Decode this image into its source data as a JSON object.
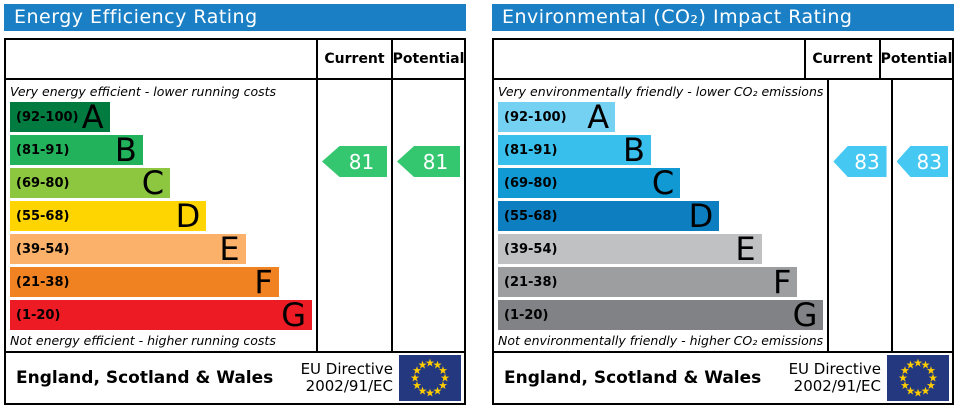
{
  "flag": {
    "blue": "#24387f",
    "star": "#ffcc00"
  },
  "chart_data": [
    {
      "type": "bar",
      "title": "Energy Efficiency Rating",
      "categories": [
        "A (92-100)",
        "B (81-91)",
        "C (69-80)",
        "D (55-68)",
        "E (39-54)",
        "F (21-38)",
        "G (1-20)"
      ],
      "series": [
        {
          "name": "Current",
          "values": [
            81
          ],
          "band": "B"
        },
        {
          "name": "Potential",
          "values": [
            81
          ],
          "band": "B"
        }
      ],
      "xlim": [
        1,
        100
      ],
      "legend_position": "none",
      "notes": "EPC band scale; bar lengths grow from A to G; arrows mark ratings"
    },
    {
      "type": "bar",
      "title": "Environmental (CO₂) Impact Rating",
      "categories": [
        "A (92-100)",
        "B (81-91)",
        "C (69-80)",
        "D (55-68)",
        "E (39-54)",
        "F (21-38)",
        "G (1-20)"
      ],
      "series": [
        {
          "name": "Current",
          "values": [
            83
          ],
          "band": "B"
        },
        {
          "name": "Potential",
          "values": [
            83
          ],
          "band": "B"
        }
      ],
      "xlim": [
        1,
        100
      ],
      "legend_position": "none",
      "notes": "CO2 band scale; bar lengths grow from A to G; arrows mark ratings"
    }
  ],
  "panels": [
    {
      "title": "Energy Efficiency Rating",
      "header_color": "#1a7fc5",
      "col_current": "Current",
      "col_potential": "Potential",
      "top_caption": "Very energy efficient - lower running costs",
      "bottom_caption": "Not energy efficient - higher running costs",
      "bands": [
        {
          "range": "(92-100)",
          "letter": "A",
          "color": "#027b41",
          "width_pct": 33
        },
        {
          "range": "(81-91)",
          "letter": "B",
          "color": "#21b25b",
          "width_pct": 44
        },
        {
          "range": "(69-80)",
          "letter": "C",
          "color": "#8dc63f",
          "width_pct": 53
        },
        {
          "range": "(55-68)",
          "letter": "D",
          "color": "#fed500",
          "width_pct": 65
        },
        {
          "range": "(39-54)",
          "letter": "E",
          "color": "#fbb169",
          "width_pct": 78
        },
        {
          "range": "(21-38)",
          "letter": "F",
          "color": "#f18221",
          "width_pct": 89
        },
        {
          "range": "(1-20)",
          "letter": "G",
          "color": "#ed1c24",
          "width_pct": 100
        }
      ],
      "current": {
        "value": "81",
        "band_index": 1,
        "color": "#34c76f"
      },
      "potential": {
        "value": "81",
        "band_index": 1,
        "color": "#34c76f"
      },
      "footer_region": "England, Scotland & Wales",
      "directive_line1": "EU Directive",
      "directive_line2": "2002/91/EC"
    },
    {
      "title": "Environmental (CO₂) Impact Rating",
      "header_color": "#1a7fc5",
      "col_current": "Current",
      "col_potential": "Potential",
      "top_caption": "Very environmentally friendly - lower CO₂ emissions",
      "bottom_caption": "Not environmentally friendly - higher CO₂ emissions",
      "bands": [
        {
          "range": "(92-100)",
          "letter": "A",
          "color": "#74d1f1",
          "width_pct": 36
        },
        {
          "range": "(81-91)",
          "letter": "B",
          "color": "#38bfec",
          "width_pct": 47
        },
        {
          "range": "(69-80)",
          "letter": "C",
          "color": "#1199d4",
          "width_pct": 56
        },
        {
          "range": "(55-68)",
          "letter": "D",
          "color": "#0d7ec0",
          "width_pct": 68
        },
        {
          "range": "(39-54)",
          "letter": "E",
          "color": "#c0c1c3",
          "width_pct": 81
        },
        {
          "range": "(21-38)",
          "letter": "F",
          "color": "#9d9ea0",
          "width_pct": 92
        },
        {
          "range": "(1-20)",
          "letter": "G",
          "color": "#818285",
          "width_pct": 100
        }
      ],
      "current": {
        "value": "83",
        "band_index": 1,
        "color": "#45c9f3"
      },
      "potential": {
        "value": "83",
        "band_index": 1,
        "color": "#45c9f3"
      },
      "footer_region": "England, Scotland & Wales",
      "directive_line1": "EU Directive",
      "directive_line2": "2002/91/EC"
    }
  ]
}
